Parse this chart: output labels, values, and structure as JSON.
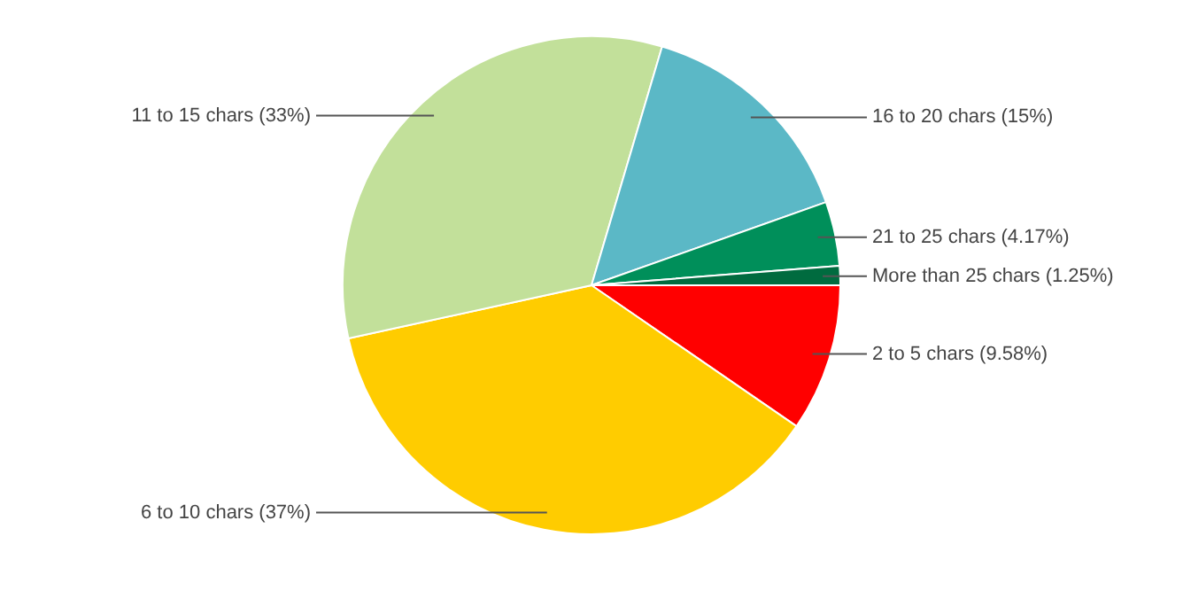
{
  "chart_data": {
    "type": "pie",
    "categories": [
      "2 to 5 chars",
      "6 to 10 chars",
      "11 to 15 chars",
      "16 to 20 chars",
      "21 to 25 chars",
      "More than 25 chars"
    ],
    "values": [
      9.58,
      37,
      33,
      15,
      4.17,
      1.25
    ],
    "value_labels": [
      "(9.58%)",
      "(37%)",
      "(33%)",
      "(15%)",
      "(4.17%)",
      "(1.25%)"
    ],
    "colors": [
      "#ff0000",
      "#ffcc00",
      "#c2e09a",
      "#5bb8c6",
      "#008f5a",
      "#006b3f"
    ],
    "legend": false
  }
}
